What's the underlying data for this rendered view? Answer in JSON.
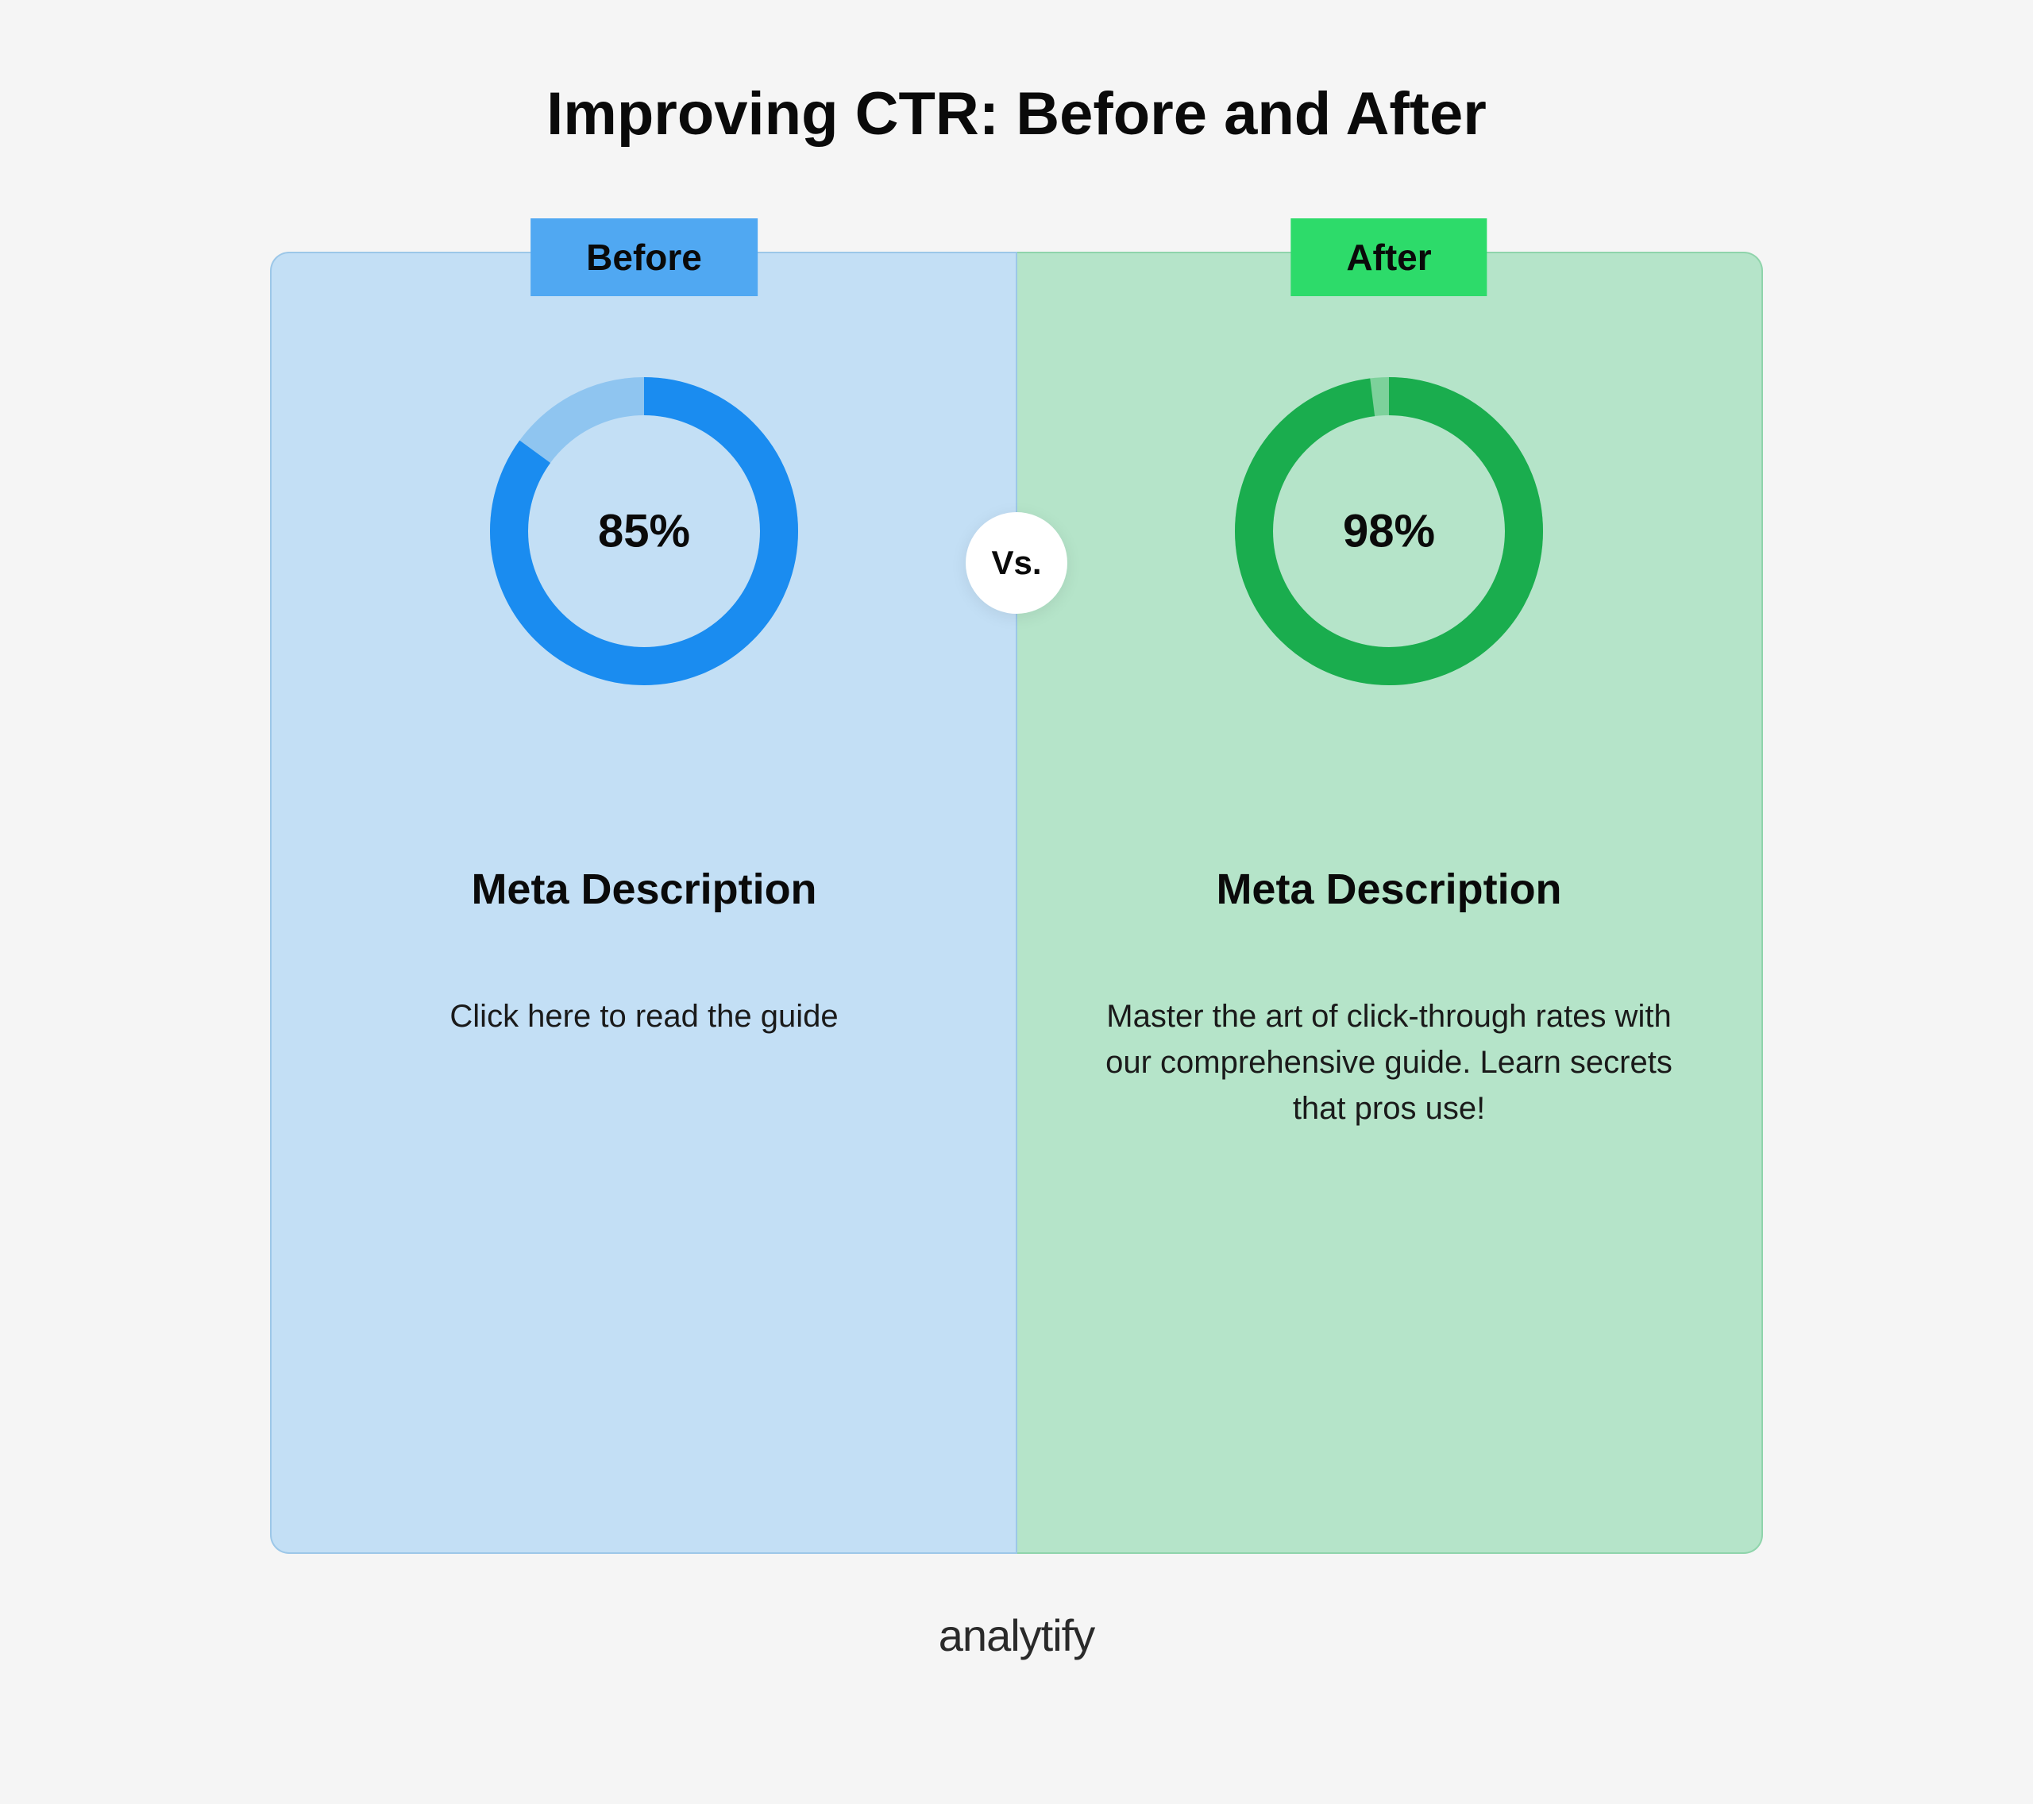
{
  "title": "Improving CTR: Before and After",
  "vs_label": "Vs.",
  "brand": "analytify",
  "background_color": "#f5f5f5",
  "before": {
    "label": "Before",
    "label_bg": "#50a8f2",
    "panel_bg": "#c3dff5",
    "panel_border": "#9cc7e8",
    "donut": {
      "value": 85,
      "display": "85%",
      "ring_color": "#1a8cf0",
      "track_color": "#8fc5f0",
      "center_fill": "#c3dff5",
      "stroke_width": 48,
      "radius": 170
    },
    "heading": "Meta Description",
    "text": "Click here to read the guide"
  },
  "after": {
    "label": "After",
    "label_bg": "#2ddb6a",
    "panel_bg": "#b5e4c9",
    "panel_border": "#8fd4ab",
    "donut": {
      "value": 98,
      "display": "98%",
      "ring_color": "#1aad4e",
      "track_color": "#7dd19b",
      "center_fill": "#b5e4c9",
      "stroke_width": 48,
      "radius": 170
    },
    "heading": "Meta Description",
    "text": "Master the art of click-through rates with our comprehensive guide. Learn secrets that pros use!"
  },
  "typography": {
    "title_fontsize": 76,
    "label_fontsize": 46,
    "donut_label_fontsize": 58,
    "heading_fontsize": 54,
    "text_fontsize": 40,
    "brand_fontsize": 56
  }
}
